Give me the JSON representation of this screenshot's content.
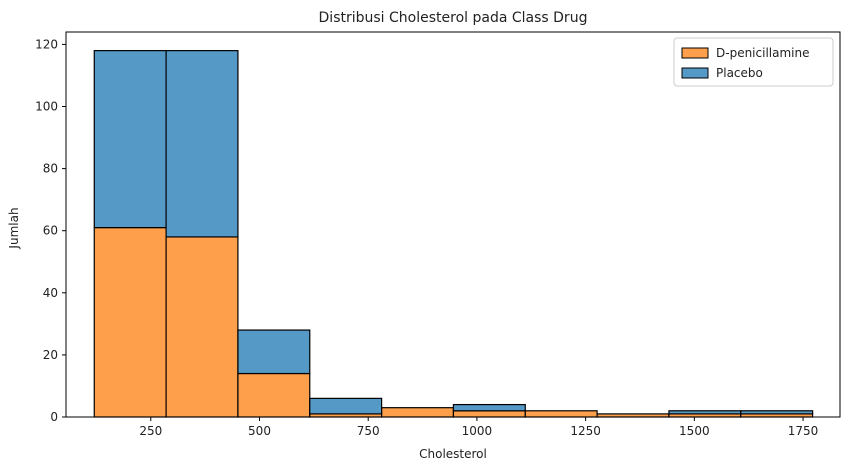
{
  "chart_data": {
    "type": "bar",
    "stacked": true,
    "title": "Distribusi Cholesterol pada Class Drug",
    "xlabel": "Cholesterol",
    "ylabel": "Jumlah",
    "xlim": [
      55,
      1835
    ],
    "ylim": [
      0,
      124
    ],
    "x_ticks": [
      250,
      500,
      750,
      1000,
      1250,
      1500,
      1750
    ],
    "y_ticks": [
      0,
      20,
      40,
      60,
      80,
      100,
      120
    ],
    "bin_edges": [
      120,
      285.2,
      450.4,
      615.6,
      780.8,
      946,
      1111.2,
      1276.4,
      1441.6,
      1606.8,
      1772
    ],
    "series": [
      {
        "name": "D-penicillamine",
        "color": "#fe9f4b",
        "values": [
          61,
          58,
          14,
          1,
          3,
          2,
          2,
          1,
          1,
          1
        ]
      },
      {
        "name": "Placebo",
        "color": "#5599c7",
        "values": [
          57,
          60,
          14,
          5,
          0,
          2,
          0,
          0,
          1,
          1
        ]
      }
    ],
    "legend_position": "top-right",
    "grid": false
  }
}
